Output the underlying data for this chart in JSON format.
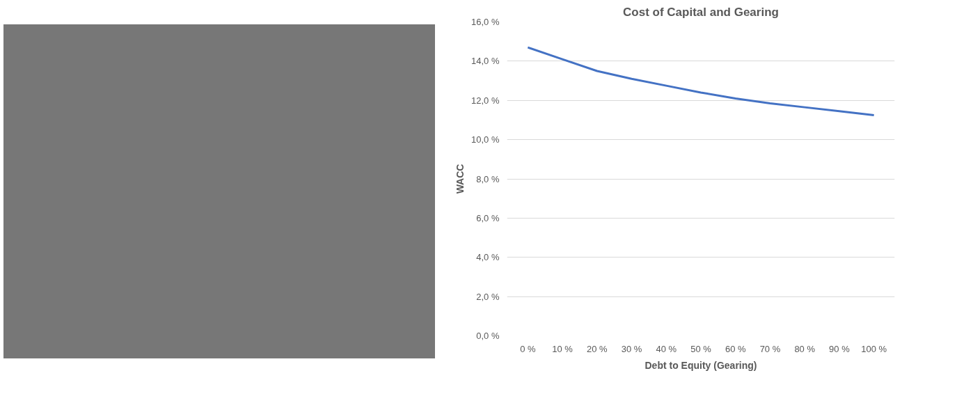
{
  "chart_data": {
    "type": "line",
    "title": "Cost of Capital and Gearing",
    "xlabel": "Debt to Equity (Gearing)",
    "ylabel": "WACC",
    "categories": [
      "0 %",
      "10 %",
      "20 %",
      "30 %",
      "40 %",
      "50 %",
      "60 %",
      "70 %",
      "80 %",
      "90 %",
      "100 %"
    ],
    "series": [
      {
        "color": "#4472c4",
        "values": [
          14.7,
          14.1,
          13.5,
          13.1,
          12.75,
          12.4,
          12.1,
          11.85,
          11.65,
          11.45,
          11.25
        ]
      }
    ],
    "ylim": [
      0,
      16
    ],
    "yticks": [
      {
        "value": 0,
        "label": "0,0 %"
      },
      {
        "value": 2,
        "label": "2,0 %"
      },
      {
        "value": 4,
        "label": "4,0 %"
      },
      {
        "value": 6,
        "label": "6,0 %"
      },
      {
        "value": 8,
        "label": "8,0 %"
      },
      {
        "value": 10,
        "label": "10,0 %"
      },
      {
        "value": 12,
        "label": "12,0 %"
      },
      {
        "value": 14,
        "label": "14,0 %"
      },
      {
        "value": 16,
        "label": "16,0 %"
      }
    ],
    "grid": "y",
    "marker": "none",
    "line_style": "solid"
  }
}
